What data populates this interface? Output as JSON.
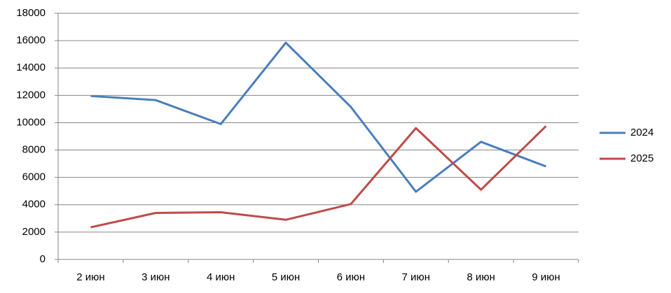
{
  "chart_data": {
    "type": "line",
    "categories": [
      "2 июн",
      "3 июн",
      "4 июн",
      "5 июн",
      "6 июн",
      "7 июн",
      "8 июн",
      "9 июн"
    ],
    "series": [
      {
        "name": "2024",
        "color": "#4a7ebb",
        "values": [
          11950,
          11650,
          9900,
          15850,
          11150,
          4950,
          8600,
          6800
        ]
      },
      {
        "name": "2025",
        "color": "#be4b48",
        "values": [
          2350,
          3400,
          3450,
          2900,
          4050,
          9600,
          5100,
          9750
        ]
      }
    ],
    "ylim": [
      0,
      18000
    ],
    "yticks": [
      0,
      2000,
      4000,
      6000,
      8000,
      10000,
      12000,
      14000,
      16000,
      18000
    ],
    "grid": true,
    "legend": "right"
  }
}
